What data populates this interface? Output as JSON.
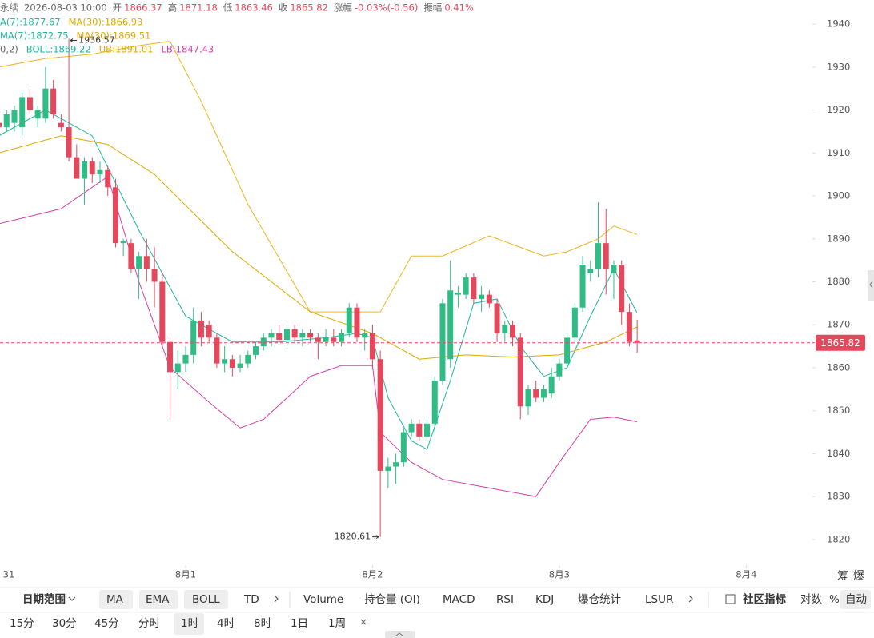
{
  "chart_data": {
    "type": "candlestick",
    "header": {
      "symbol": "永续",
      "time": "2026-08-03 10:00",
      "open_label": "开",
      "high_label": "高",
      "low_label": "低",
      "close_label": "收",
      "change_label": "涨幅",
      "change": "-0.03%(-0.56)",
      "amplitude_label": "振幅",
      "amplitude": "0.41%"
    },
    "legend": [
      [
        {
          "text": "A(7):1877.67",
          "color": "#1fb5a0"
        },
        {
          "text": "MA(30):1866.93",
          "color": "#e0a800"
        }
      ],
      [
        {
          "text": "MA(7):1872.75",
          "color": "#1fb5a0"
        },
        {
          "text": "MA(30):1869.51",
          "color": "#e0a800"
        }
      ],
      [
        {
          "text": "0,2)",
          "color": "#666666"
        },
        {
          "text": "BOLL:1869.22",
          "color": "#1fb5a0"
        },
        {
          "text": "UB:1891.01",
          "color": "#e0a800"
        },
        {
          "text": "LB:1847.43",
          "color": "#d03fa8"
        }
      ]
    ],
    "up_color": "#2ebd85",
    "down_color": "#e5485d",
    "open": [
      1917,
      1916,
      1917,
      1916,
      1923,
      1918,
      1918,
      1925,
      1917,
      1916,
      1909,
      1904,
      1908,
      1905,
      1906,
      1902,
      1889,
      1889,
      1883,
      1886,
      1883,
      1880,
      1866,
      1859,
      1861,
      1863,
      1871,
      1870,
      1867,
      1861,
      1862,
      1860,
      1861,
      1863,
      1865,
      1867,
      1868,
      1866.5,
      1869,
      1867,
      1868,
      1867,
      1866,
      1867,
      1866,
      1868,
      1874,
      1867,
      1868,
      1862,
      1836,
      1837,
      1838,
      1845,
      1847,
      1844,
      1847,
      1857,
      1862,
      1877,
      1877,
      1881,
      1876,
      1877,
      1875,
      1868,
      1870,
      1867,
      1851,
      1855,
      1853,
      1854,
      1858,
      1861,
      1867,
      1874,
      1882,
      1883,
      1889,
      1882,
      1884,
      1873,
      1866.37
    ],
    "high": [
      1919,
      1920,
      1921,
      1924,
      1925,
      1921,
      1930,
      1927,
      1919,
      1936.57,
      1912,
      1909,
      1909,
      1908,
      1907,
      1904,
      1890,
      1890,
      1887,
      1890,
      1888,
      1882,
      1867,
      1864,
      1865,
      1874,
      1873,
      1871,
      1868,
      1865,
      1863,
      1863,
      1864,
      1866,
      1868,
      1869,
      1870,
      1870,
      1870,
      1869,
      1869,
      1868,
      1869,
      1869,
      1869,
      1875,
      1875,
      1869,
      1870,
      1864,
      1839,
      1840,
      1846,
      1848,
      1848,
      1848,
      1858,
      1876,
      1885,
      1879,
      1882,
      1882,
      1879,
      1878,
      1876,
      1871,
      1871,
      1868,
      1856,
      1857,
      1856,
      1860,
      1862,
      1868,
      1875,
      1886,
      1885,
      1898.5,
      1897,
      1885,
      1885,
      1875,
      1871.18
    ],
    "low": [
      1915,
      1915,
      1915,
      1914,
      1919,
      1916,
      1917,
      1918,
      1915,
      1908,
      1904,
      1898,
      1903,
      1903,
      1900,
      1888,
      1886,
      1882,
      1876,
      1880,
      1874,
      1865,
      1848,
      1855,
      1859,
      1861,
      1865,
      1866,
      1860,
      1859,
      1858,
      1859,
      1860,
      1862,
      1864,
      1865,
      1866,
      1865,
      1866,
      1865,
      1866,
      1862,
      1865,
      1865,
      1865,
      1867,
      1866,
      1864,
      1860,
      1820.61,
      1832,
      1833,
      1837,
      1844,
      1843,
      1843,
      1845,
      1856,
      1860,
      1874,
      1876,
      1875,
      1873,
      1874,
      1866,
      1866,
      1865,
      1848,
      1849,
      1852,
      1852,
      1853,
      1857,
      1860,
      1866,
      1873,
      1880,
      1881,
      1877,
      1876,
      1870,
      1865,
      1863.46
    ],
    "close": [
      1916,
      1919,
      1920,
      1923,
      1920,
      1920,
      1925,
      1919,
      1916,
      1909,
      1904,
      1908,
      1905,
      1906,
      1902,
      1889,
      1889.5,
      1883,
      1886,
      1883,
      1880,
      1866,
      1859,
      1861,
      1863,
      1871,
      1867,
      1867,
      1861,
      1862,
      1860,
      1861,
      1863,
      1865,
      1867,
      1868,
      1866.5,
      1869,
      1867,
      1868,
      1867,
      1866,
      1867,
      1866,
      1868,
      1874,
      1867,
      1868,
      1862,
      1836,
      1837,
      1838,
      1845,
      1847,
      1844,
      1847,
      1857,
      1875,
      1878,
      1877.5,
      1881,
      1876,
      1877,
      1875,
      1868,
      1870,
      1867,
      1851,
      1855,
      1853,
      1855,
      1858,
      1861,
      1867,
      1874,
      1884,
      1883,
      1889,
      1883,
      1884,
      1873,
      1866,
      1865.82
    ],
    "overlays": [
      {
        "color": "#f0b51e",
        "x": [
          0,
          6,
          12,
          18,
          22,
          26,
          32,
          40,
          44,
          49,
          53,
          57,
          63,
          70,
          73,
          77,
          79,
          82
        ],
        "values": [
          1930,
          1932,
          1933,
          1935,
          1936,
          1922,
          1898,
          1873,
          1873,
          1873,
          1886,
          1886,
          1890.7,
          1886,
          1887,
          1890,
          1893,
          1891.01
        ]
      },
      {
        "color": "#d03fa8",
        "x": [
          0,
          8,
          12,
          14,
          18,
          22,
          27,
          31,
          34,
          40,
          44,
          48,
          49,
          53,
          57,
          63,
          69,
          72,
          76,
          79,
          82
        ],
        "values": [
          1893.5,
          1897,
          1902,
          1904.5,
          1880,
          1860,
          1852,
          1846,
          1848,
          1858,
          1860.5,
          1860.5,
          1845,
          1838,
          1834,
          1832,
          1830,
          1838,
          1848,
          1848.5,
          1847.43
        ]
      },
      {
        "color": "#1fb5a0",
        "x": [
          0,
          6,
          12,
          18,
          24,
          30,
          36,
          42,
          46,
          48,
          50,
          53,
          55,
          58,
          61,
          64,
          67,
          70,
          73,
          76,
          79,
          82
        ],
        "values": [
          1914,
          1920,
          1914,
          1892,
          1872,
          1866,
          1866,
          1867,
          1868,
          1867,
          1853,
          1843,
          1841,
          1857,
          1875,
          1876,
          1865,
          1858,
          1860,
          1872,
          1883,
          1872.75
        ]
      },
      {
        "color": "#e0a800",
        "x": [
          0,
          8,
          14,
          20,
          30,
          40,
          48,
          54,
          60,
          66,
          72,
          78,
          82
        ],
        "values": [
          1910,
          1914,
          1912,
          1905,
          1887,
          1873,
          1868,
          1862,
          1863,
          1862.5,
          1863,
          1866,
          1869.51
        ]
      }
    ],
    "xlim": [
      0.15,
      104.5
    ],
    "ylim": [
      1814.4,
      1945.6
    ],
    "xticks": [
      {
        "value": 0,
        "label": "31"
      },
      {
        "value": 24,
        "label": "8月1"
      },
      {
        "value": 48,
        "label": "8月2"
      },
      {
        "value": 72,
        "label": "8月3"
      },
      {
        "value": 96,
        "label": "8月4"
      }
    ],
    "yticks": [
      1820,
      1830,
      1840,
      1850,
      1860,
      1870,
      1880,
      1890,
      1900,
      1910,
      1920,
      1930,
      1940
    ],
    "corner_labels": [
      "筹",
      "爆"
    ]
  },
  "toolbar": {
    "row1": [
      "日期范围",
      "MA",
      "EMA",
      "BOLL",
      "TD",
      "Volume",
      "持仓量 (OI)",
      "MACD",
      "RSI",
      "KDJ",
      "爆仓统计",
      "LSUR",
      "社区指标",
      "对数",
      "%",
      "自动"
    ],
    "row2": [
      "15分",
      "30分",
      "45分",
      "分时",
      "1时",
      "4时",
      "8时",
      "1日",
      "1周"
    ]
  }
}
